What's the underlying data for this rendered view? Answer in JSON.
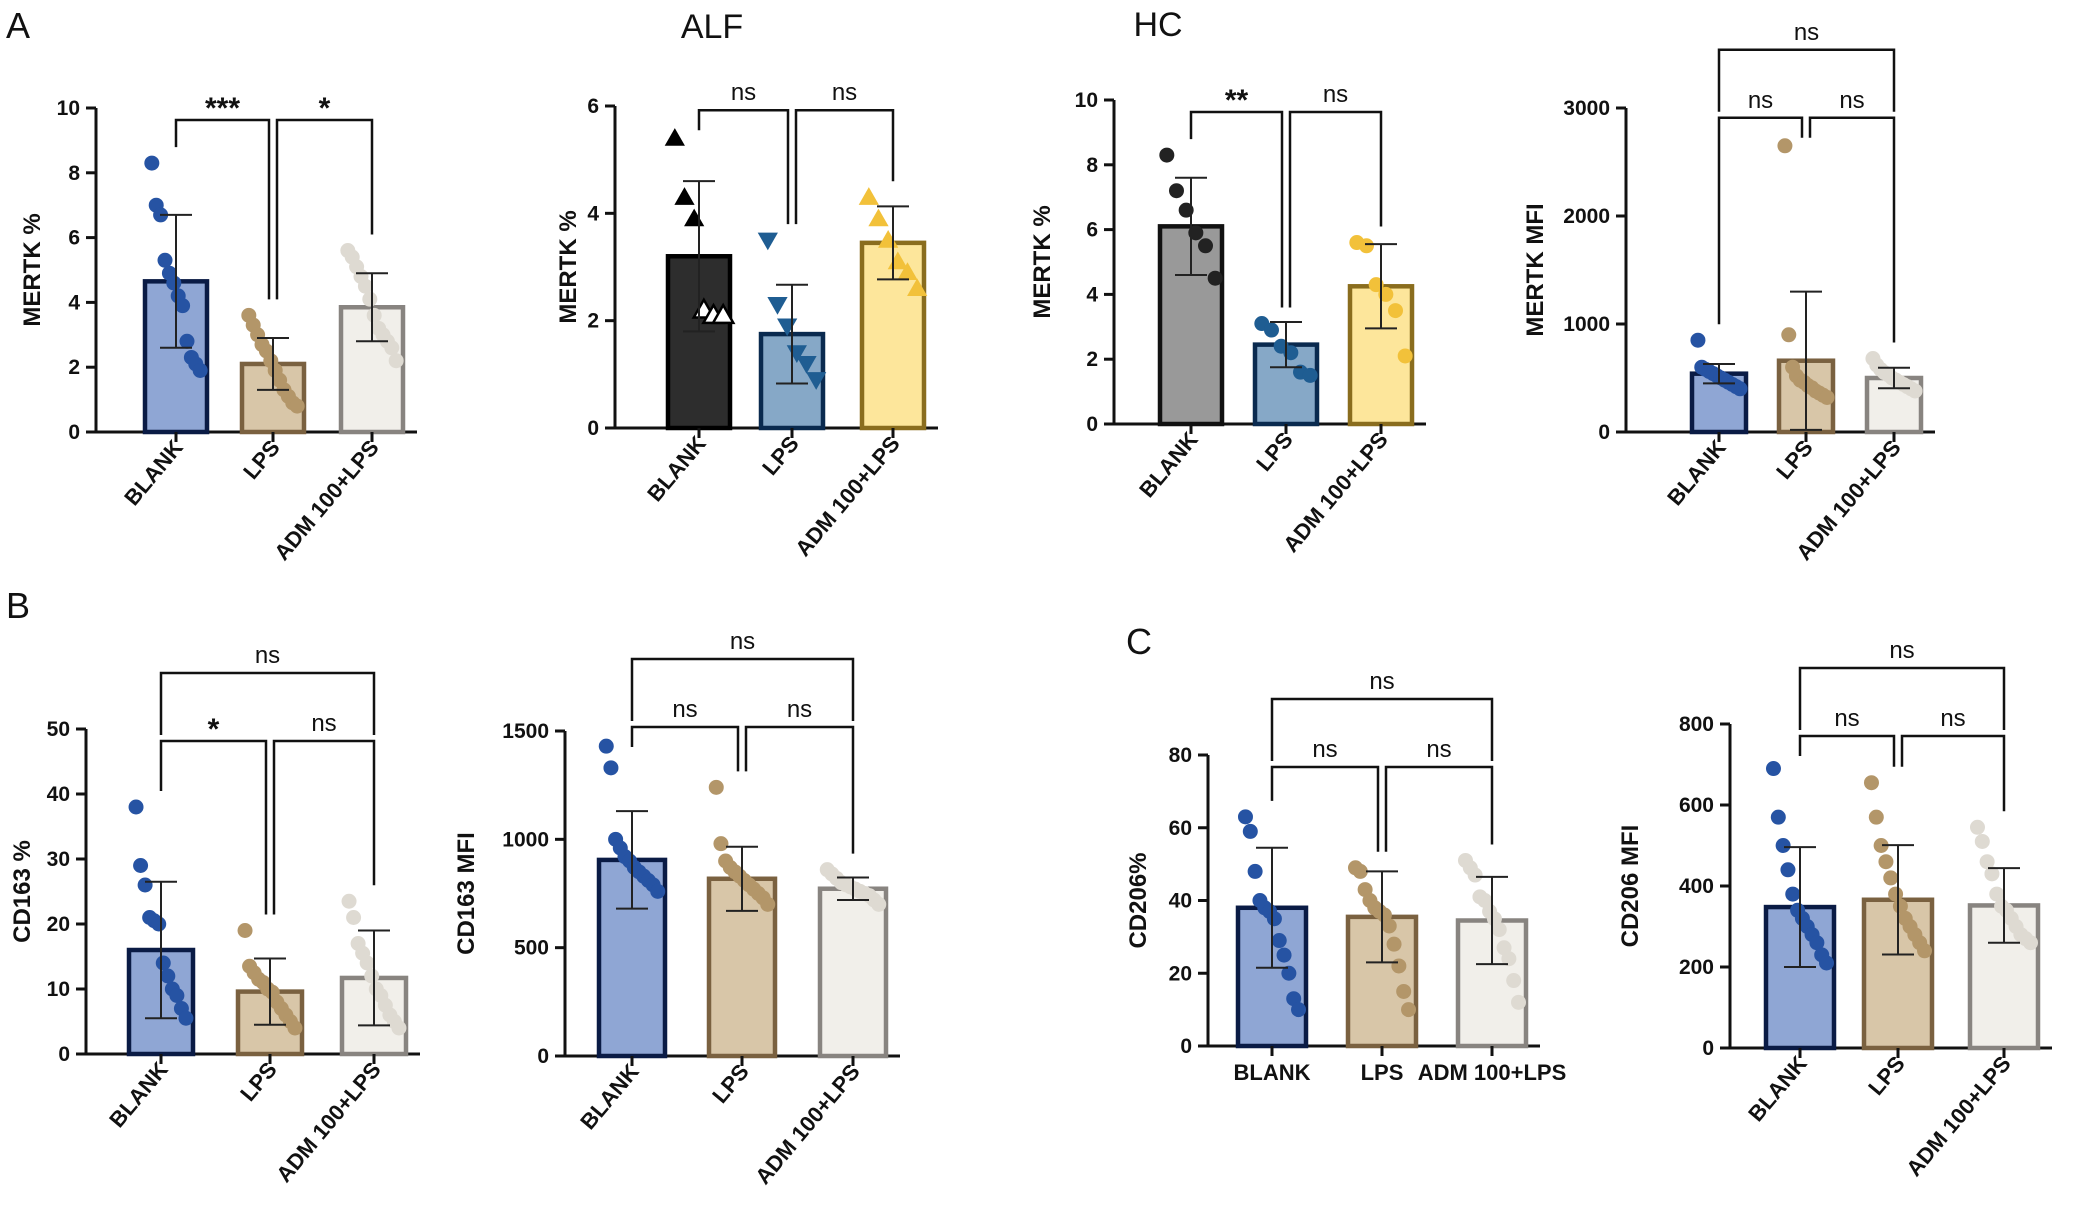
{
  "figure": {
    "panel_labels": [
      "A",
      "B",
      "C"
    ],
    "group_titles": [
      "ALF",
      "HC"
    ]
  },
  "chart_data": [
    {
      "type": "bar",
      "ylabel": "MERTK %",
      "ylim": [
        0,
        10
      ],
      "yticks": [
        0,
        2,
        4,
        6,
        8,
        10
      ],
      "ytick_labels": [
        "0",
        "2",
        "4",
        "6",
        "8",
        "10"
      ],
      "categories": [
        "BLANK",
        "LPS",
        "ADM 100+LPS"
      ],
      "values": [
        4.65,
        2.1,
        3.85
      ],
      "sd": [
        2.05,
        0.8,
        1.05
      ],
      "points": [
        [
          8.3,
          7.0,
          6.7,
          5.3,
          4.9,
          4.6,
          4.2,
          3.9,
          2.8,
          2.3,
          2.1,
          1.9
        ],
        [
          3.6,
          3.3,
          3.0,
          2.7,
          2.5,
          2.2,
          1.9,
          1.6,
          1.3,
          1.1,
          0.9,
          0.8
        ],
        [
          5.6,
          5.4,
          5.1,
          4.8,
          4.5,
          4.1,
          3.6,
          3.2,
          3.0,
          2.8,
          2.6,
          2.2
        ]
      ],
      "colors": [
        "#8fa6d4",
        "#d8c6a8",
        "#f1efea"
      ],
      "edge_colors": [
        "#0a1b45",
        "#7a6140",
        "#888480"
      ],
      "point_colors": [
        "#2653a3",
        "#b39669",
        "#dedad2"
      ],
      "markers": [
        "circle",
        "circle",
        "circle"
      ],
      "comparisons": [
        {
          "from": 0,
          "to": 1,
          "label": "***",
          "level": 1
        },
        {
          "from": 1,
          "to": 2,
          "label": "*",
          "level": 1
        }
      ],
      "panel_label": "A"
    },
    {
      "type": "bar",
      "ylabel": "MERTK %",
      "ylim": [
        0,
        6
      ],
      "yticks": [
        0,
        2,
        4,
        6
      ],
      "ytick_labels": [
        "0",
        "2",
        "4",
        "6"
      ],
      "categories": [
        "BLANK",
        "LPS",
        "ADM 100+LPS"
      ],
      "values": [
        3.2,
        1.75,
        3.45
      ],
      "sd": [
        1.4,
        0.92,
        0.68
      ],
      "points": [
        [
          5.4,
          4.3,
          3.9,
          2.2,
          2.1,
          2.1
        ],
        [
          3.5,
          2.3,
          1.9,
          1.4,
          1.2,
          0.9
        ],
        [
          4.3,
          3.9,
          3.5,
          3.1,
          2.9,
          2.6
        ]
      ],
      "colors": [
        "#2d2d2d",
        "#86a8c7",
        "#fde69b"
      ],
      "edge_colors": [
        "#000000",
        "#0a2a4f",
        "#8a6d1e"
      ],
      "point_colors": [
        "#000000",
        "#1f5d92",
        "#f2c13a"
      ],
      "markers": [
        "triangle",
        "triangle-down",
        "triangle"
      ],
      "hollow_points": [
        [
          false,
          false,
          false,
          true,
          true,
          true
        ],
        [
          false,
          false,
          false,
          false,
          false,
          false
        ],
        [
          false,
          false,
          false,
          false,
          false,
          false
        ]
      ],
      "comparisons": [
        {
          "from": 0,
          "to": 1,
          "label": "ns",
          "level": 1
        },
        {
          "from": 1,
          "to": 2,
          "label": "ns",
          "level": 1
        }
      ],
      "group_title": "ALF"
    },
    {
      "type": "bar",
      "ylabel": "MERTK %",
      "ylim": [
        0,
        10
      ],
      "yticks": [
        0,
        2,
        4,
        6,
        8,
        10
      ],
      "ytick_labels": [
        "0",
        "2",
        "4",
        "6",
        "8",
        "10"
      ],
      "categories": [
        "BLANK",
        "LPS",
        "ADM 100+LPS"
      ],
      "values": [
        6.1,
        2.45,
        4.25
      ],
      "sd": [
        1.5,
        0.7,
        1.3
      ],
      "points": [
        [
          8.3,
          7.2,
          6.6,
          5.9,
          5.5,
          4.5
        ],
        [
          3.1,
          2.9,
          2.4,
          2.2,
          1.6,
          1.5
        ],
        [
          5.6,
          5.5,
          4.3,
          4.0,
          3.5,
          2.1
        ]
      ],
      "colors": [
        "#999999",
        "#86a8c7",
        "#fde69b"
      ],
      "edge_colors": [
        "#111111",
        "#0a2a4f",
        "#8a6d1e"
      ],
      "point_colors": [
        "#222222",
        "#1f5d92",
        "#f2c13a"
      ],
      "markers": [
        "circle",
        "circle",
        "circle"
      ],
      "comparisons": [
        {
          "from": 0,
          "to": 1,
          "label": "**",
          "level": 1
        },
        {
          "from": 1,
          "to": 2,
          "label": "ns",
          "level": 1
        }
      ],
      "group_title": "HC"
    },
    {
      "type": "bar",
      "ylabel": "MERTK MFI",
      "ylim": [
        0,
        3000
      ],
      "yticks": [
        0,
        1000,
        2000,
        3000
      ],
      "ytick_labels": [
        "0",
        "1000",
        "2000",
        "3000"
      ],
      "categories": [
        "BLANK",
        "LPS",
        "ADM 100+LPS"
      ],
      "values": [
        540,
        660,
        500
      ],
      "sd": [
        90,
        640,
        95
      ],
      "points": [
        [
          850,
          600,
          580,
          560,
          540,
          520,
          500,
          480,
          460,
          440,
          420,
          400
        ],
        [
          2650,
          900,
          600,
          520,
          480,
          460,
          430,
          410,
          380,
          360,
          340,
          320
        ],
        [
          680,
          620,
          580,
          550,
          530,
          500,
          480,
          460,
          440,
          420,
          400,
          380
        ]
      ],
      "colors": [
        "#8fa6d4",
        "#d8c6a8",
        "#f1efea"
      ],
      "edge_colors": [
        "#0a1b45",
        "#7a6140",
        "#888480"
      ],
      "point_colors": [
        "#2653a3",
        "#b39669",
        "#dedad2"
      ],
      "markers": [
        "circle",
        "circle",
        "circle"
      ],
      "comparisons": [
        {
          "from": 0,
          "to": 1,
          "label": "ns",
          "level": 1
        },
        {
          "from": 1,
          "to": 2,
          "label": "ns",
          "level": 1
        },
        {
          "from": 0,
          "to": 2,
          "label": "ns",
          "level": 2
        }
      ]
    },
    {
      "type": "bar",
      "ylabel": "CD163 %",
      "ylim": [
        0,
        50
      ],
      "yticks": [
        0,
        10,
        20,
        30,
        40,
        50
      ],
      "ytick_labels": [
        "0",
        "10",
        "20",
        "30",
        "40",
        "50"
      ],
      "categories": [
        "BLANK",
        "LPS",
        "ADM 100+LPS"
      ],
      "values": [
        16,
        9.6,
        11.7
      ],
      "sd": [
        10.5,
        5.1,
        7.3
      ],
      "points": [
        [
          38,
          29,
          26,
          21,
          20.5,
          20,
          14,
          12,
          10,
          9,
          7,
          5.5
        ],
        [
          19,
          13.5,
          12.5,
          11.5,
          11,
          10,
          9.5,
          8,
          7,
          6,
          5,
          4
        ],
        [
          23.5,
          21,
          17,
          15.5,
          14,
          12,
          10,
          9,
          7.5,
          6,
          5,
          4
        ]
      ],
      "colors": [
        "#8fa6d4",
        "#d8c6a8",
        "#f1efea"
      ],
      "edge_colors": [
        "#0a1b45",
        "#7a6140",
        "#888480"
      ],
      "point_colors": [
        "#2653a3",
        "#b39669",
        "#dedad2"
      ],
      "markers": [
        "circle",
        "circle",
        "circle"
      ],
      "comparisons": [
        {
          "from": 0,
          "to": 1,
          "label": "*",
          "level": 1
        },
        {
          "from": 1,
          "to": 2,
          "label": "ns",
          "level": 1
        },
        {
          "from": 0,
          "to": 2,
          "label": "ns",
          "level": 2
        }
      ],
      "panel_label": "B"
    },
    {
      "type": "bar",
      "ylabel": "CD163 MFI",
      "ylim": [
        0,
        1500
      ],
      "yticks": [
        0,
        500,
        1000,
        1500
      ],
      "ytick_labels": [
        "0",
        "500",
        "1000",
        "1500"
      ],
      "categories": [
        "BLANK",
        "LPS",
        "ADM 100+LPS"
      ],
      "values": [
        905,
        818,
        772
      ],
      "sd": [
        225,
        148,
        52
      ],
      "points": [
        [
          1430,
          1330,
          1000,
          960,
          920,
          900,
          870,
          850,
          830,
          810,
          790,
          760
        ],
        [
          1240,
          980,
          900,
          870,
          850,
          830,
          810,
          790,
          770,
          750,
          730,
          700
        ],
        [
          860,
          840,
          820,
          800,
          790,
          780,
          770,
          760,
          750,
          740,
          720,
          700
        ]
      ],
      "colors": [
        "#8fa6d4",
        "#d8c6a8",
        "#f1efea"
      ],
      "edge_colors": [
        "#0a1b45",
        "#7a6140",
        "#888480"
      ],
      "point_colors": [
        "#2653a3",
        "#b39669",
        "#dedad2"
      ],
      "markers": [
        "circle",
        "circle",
        "circle"
      ],
      "comparisons": [
        {
          "from": 0,
          "to": 1,
          "label": "ns",
          "level": 1
        },
        {
          "from": 1,
          "to": 2,
          "label": "ns",
          "level": 1
        },
        {
          "from": 0,
          "to": 2,
          "label": "ns",
          "level": 2
        }
      ]
    },
    {
      "type": "bar",
      "ylabel": "CD206%",
      "ylim": [
        0,
        80
      ],
      "yticks": [
        0,
        20,
        40,
        60,
        80
      ],
      "ytick_labels": [
        "0",
        "20",
        "40",
        "60",
        "80"
      ],
      "categories": [
        "BLANK",
        "LPS",
        "ADM 100+LPS"
      ],
      "values": [
        38,
        35.5,
        34.5
      ],
      "sd": [
        16.5,
        12.5,
        12
      ],
      "points": [
        [
          63,
          59,
          48,
          40,
          38,
          37,
          35,
          29,
          25,
          20,
          13,
          10
        ],
        [
          49,
          48,
          43,
          40,
          38,
          37,
          36,
          33,
          28,
          22,
          15,
          10
        ],
        [
          51,
          49,
          47,
          41,
          40,
          37,
          35,
          32,
          27,
          24,
          18,
          12
        ]
      ],
      "colors": [
        "#8fa6d4",
        "#d8c6a8",
        "#f1efea"
      ],
      "edge_colors": [
        "#0a1b45",
        "#7a6140",
        "#888480"
      ],
      "point_colors": [
        "#2653a3",
        "#b39669",
        "#dedad2"
      ],
      "markers": [
        "circle",
        "circle",
        "circle"
      ],
      "comparisons": [
        {
          "from": 0,
          "to": 1,
          "label": "ns",
          "level": 1
        },
        {
          "from": 1,
          "to": 2,
          "label": "ns",
          "level": 1
        },
        {
          "from": 0,
          "to": 2,
          "label": "ns",
          "level": 2
        }
      ],
      "panel_label": "C"
    },
    {
      "type": "bar",
      "ylabel": "CD206 MFI",
      "ylim": [
        0,
        800
      ],
      "yticks": [
        0,
        200,
        400,
        600,
        800
      ],
      "ytick_labels": [
        "0",
        "200",
        "400",
        "600",
        "800"
      ],
      "categories": [
        "BLANK",
        "LPS",
        "ADM 100+LPS"
      ],
      "values": [
        348,
        366,
        352
      ],
      "sd": [
        148,
        135,
        92
      ],
      "points": [
        [
          690,
          570,
          500,
          440,
          380,
          340,
          320,
          300,
          280,
          260,
          230,
          210
        ],
        [
          655,
          570,
          500,
          460,
          420,
          380,
          350,
          320,
          300,
          280,
          260,
          240
        ],
        [
          545,
          510,
          460,
          430,
          380,
          350,
          340,
          320,
          300,
          280,
          270,
          260
        ]
      ],
      "colors": [
        "#8fa6d4",
        "#d8c6a8",
        "#f1efea"
      ],
      "edge_colors": [
        "#0a1b45",
        "#7a6140",
        "#888480"
      ],
      "point_colors": [
        "#2653a3",
        "#b39669",
        "#dedad2"
      ],
      "markers": [
        "circle",
        "circle",
        "circle"
      ],
      "comparisons": [
        {
          "from": 0,
          "to": 1,
          "label": "ns",
          "level": 1
        },
        {
          "from": 1,
          "to": 2,
          "label": "ns",
          "level": 1
        },
        {
          "from": 0,
          "to": 2,
          "label": "ns",
          "level": 2
        }
      ]
    }
  ]
}
